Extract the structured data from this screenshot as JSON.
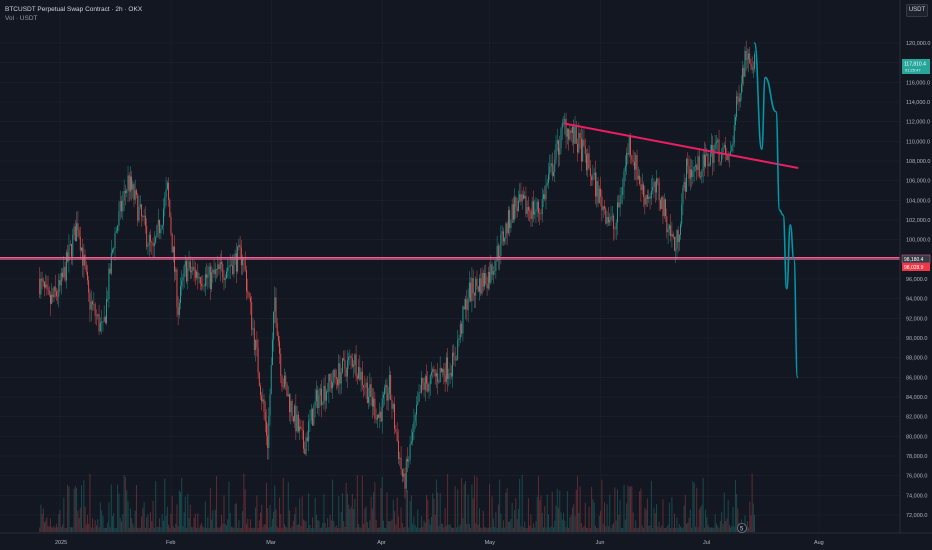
{
  "header": {
    "symbol_line": "BTCUSDT Perpetual Swap Contract · 2h · OKX",
    "volume_line": "Vol · USDT"
  },
  "price_axis": {
    "unit_button": "USDT",
    "ticks": [
      "120,000.0",
      "118,000.0",
      "116,000.0",
      "114,000.0",
      "112,000.0",
      "110,000.0",
      "108,000.0",
      "106,000.0",
      "104,000.0",
      "102,000.0",
      "100,000.0",
      "98,000.0",
      "96,000.0",
      "94,000.0",
      "92,000.0",
      "90,000.0",
      "88,000.0",
      "86,000.0",
      "84,000.0",
      "82,000.0",
      "80,000.0",
      "78,000.0",
      "76,000.0",
      "74,000.0",
      "72,000.0"
    ]
  },
  "time_axis": {
    "labels": [
      "2025",
      "Feb",
      "Mar",
      "Apr",
      "May",
      "Jun",
      "Jul",
      "Aug"
    ]
  },
  "price_tags": {
    "current_price": "117,810.4",
    "current_countdown": "01:25:47",
    "line_upper": "98,180.4",
    "line_lower": "98,028.9"
  },
  "colors": {
    "background": "#131722",
    "up": "#26a69a",
    "down": "#ef5350",
    "trendline": "#e91e63",
    "projection": "#0097a7",
    "horizontal_line": "#f06292"
  },
  "chart_data": {
    "type": "candlestick",
    "title": "BTCUSDT Perpetual Swap Contract · 2h · OKX",
    "ylabel": "USDT",
    "ylim": [
      71000,
      122000
    ],
    "x_labels": [
      "2025",
      "Feb",
      "Mar",
      "Apr",
      "May",
      "Jun",
      "Jul",
      "Aug"
    ],
    "price_path": [
      {
        "date": "2024-12-26",
        "close": 96000
      },
      {
        "date": "2024-12-29",
        "close": 93500
      },
      {
        "date": "2025-01-01",
        "close": 95000
      },
      {
        "date": "2025-01-06",
        "close": 101800
      },
      {
        "date": "2025-01-09",
        "close": 94000
      },
      {
        "date": "2025-01-13",
        "close": 90500
      },
      {
        "date": "2025-01-16",
        "close": 100000
      },
      {
        "date": "2025-01-20",
        "close": 106000
      },
      {
        "date": "2025-01-22",
        "close": 104000
      },
      {
        "date": "2025-01-27",
        "close": 98500
      },
      {
        "date": "2025-01-31",
        "close": 105000
      },
      {
        "date": "2025-02-03",
        "close": 93000
      },
      {
        "date": "2025-02-05",
        "close": 97000
      },
      {
        "date": "2025-02-12",
        "close": 96000
      },
      {
        "date": "2025-02-21",
        "close": 98500
      },
      {
        "date": "2025-02-25",
        "close": 88000
      },
      {
        "date": "2025-02-28",
        "close": 79500
      },
      {
        "date": "2025-03-02",
        "close": 94000
      },
      {
        "date": "2025-03-04",
        "close": 86000
      },
      {
        "date": "2025-03-10",
        "close": 79000
      },
      {
        "date": "2025-03-14",
        "close": 84000
      },
      {
        "date": "2025-03-24",
        "close": 88000
      },
      {
        "date": "2025-03-31",
        "close": 82000
      },
      {
        "date": "2025-04-03",
        "close": 85000
      },
      {
        "date": "2025-04-07",
        "close": 75000
      },
      {
        "date": "2025-04-12",
        "close": 85000
      },
      {
        "date": "2025-04-21",
        "close": 87500
      },
      {
        "date": "2025-04-25",
        "close": 94500
      },
      {
        "date": "2025-05-01",
        "close": 96500
      },
      {
        "date": "2025-05-08",
        "close": 103500
      },
      {
        "date": "2025-05-15",
        "close": 103000
      },
      {
        "date": "2025-05-22",
        "close": 111800
      },
      {
        "date": "2025-05-27",
        "close": 109000
      },
      {
        "date": "2025-06-01",
        "close": 104000
      },
      {
        "date": "2025-06-05",
        "close": 101000
      },
      {
        "date": "2025-06-09",
        "close": 110000
      },
      {
        "date": "2025-06-13",
        "close": 104500
      },
      {
        "date": "2025-06-17",
        "close": 105000
      },
      {
        "date": "2025-06-22",
        "close": 99000
      },
      {
        "date": "2025-06-25",
        "close": 107000
      },
      {
        "date": "2025-06-30",
        "close": 107500
      },
      {
        "date": "2025-07-03",
        "close": 109500
      },
      {
        "date": "2025-07-07",
        "close": 108000
      },
      {
        "date": "2025-07-10",
        "close": 116000
      },
      {
        "date": "2025-07-12",
        "close": 119500
      },
      {
        "date": "2025-07-14",
        "close": 117800
      }
    ],
    "trendline": [
      {
        "date": "2025-05-22",
        "price": 111800
      },
      {
        "date": "2025-07-26",
        "price": 107300
      }
    ],
    "horizontal_lines": [
      98180.4,
      98028.9
    ],
    "projection_path": [
      {
        "date": "2025-07-14",
        "price": 120000
      },
      {
        "date": "2025-07-16",
        "price": 109200
      },
      {
        "date": "2025-07-17",
        "price": 116500
      },
      {
        "date": "2025-07-20",
        "price": 113000
      },
      {
        "date": "2025-07-21",
        "price": 103000
      },
      {
        "date": "2025-07-22",
        "price": 102500
      },
      {
        "date": "2025-07-23",
        "price": 95000
      },
      {
        "date": "2025-07-24",
        "price": 101500
      },
      {
        "date": "2025-07-25",
        "price": 98000
      },
      {
        "date": "2025-07-26",
        "price": 86000
      }
    ],
    "volume": {
      "label": "Vol · USDT",
      "pattern": "bars along the bottom of the price pane"
    }
  }
}
